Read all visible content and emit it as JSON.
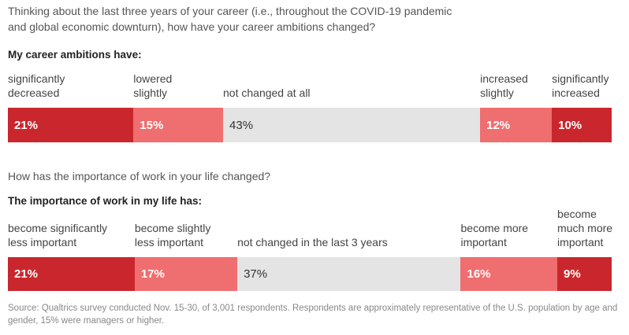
{
  "colors": {
    "dark_red": "#c9272d",
    "light_red": "#ef6e70",
    "neutral_gray": "#e4e4e4"
  },
  "chart_data": [
    {
      "type": "bar",
      "orientation": "horizontal-stacked-100",
      "question": "Thinking about the last three years of your career (i.e., throughout the COVID-19 pandemic and global economic downturn), how have your career ambitions changed?",
      "question_lines": [
        "Thinking about the last three years of your career (i.e., throughout the COVID-19 pandemic",
        "and global economic downturn), how have your career ambitions changed?"
      ],
      "subtitle": "My career ambitions have:",
      "segments": [
        {
          "label": "significantly decreased",
          "label_lines": [
            "significantly",
            "decreased"
          ],
          "value": 21,
          "value_label": "21%",
          "color": "#c9272d"
        },
        {
          "label": "lowered slightly",
          "label_lines": [
            "lowered",
            "slightly"
          ],
          "value": 15,
          "value_label": "15%",
          "color": "#ef6e70"
        },
        {
          "label": "not changed at all",
          "label_lines": [
            "not changed at all"
          ],
          "value": 43,
          "value_label": "43%",
          "color": "#e4e4e4"
        },
        {
          "label": "increased slightly",
          "label_lines": [
            "increased",
            "slightly"
          ],
          "value": 12,
          "value_label": "12%",
          "color": "#ef6e70"
        },
        {
          "label": "significantly increased",
          "label_lines": [
            "significantly",
            "increased"
          ],
          "value": 10,
          "value_label": "10%",
          "color": "#c9272d"
        }
      ]
    },
    {
      "type": "bar",
      "orientation": "horizontal-stacked-100",
      "question": "How has the importance of work in your life changed?",
      "question_lines": [
        "How has the importance of work in your life changed?"
      ],
      "subtitle": "The importance of work in my life has:",
      "segments": [
        {
          "label": "become significantly less important",
          "label_lines": [
            "become significantly",
            "less important"
          ],
          "value": 21,
          "value_label": "21%",
          "color": "#c9272d"
        },
        {
          "label": "become slightly less important",
          "label_lines": [
            "become slightly",
            "less important"
          ],
          "value": 17,
          "value_label": "17%",
          "color": "#ef6e70"
        },
        {
          "label": "not changed in the last 3 years",
          "label_lines": [
            "not changed in the last 3 years"
          ],
          "value": 37,
          "value_label": "37%",
          "color": "#e4e4e4"
        },
        {
          "label": "become more important",
          "label_lines": [
            "become more",
            "important"
          ],
          "value": 16,
          "value_label": "16%",
          "color": "#ef6e70"
        },
        {
          "label": "become much more important",
          "label_lines": [
            "become",
            "much more",
            "important"
          ],
          "value": 9,
          "value_label": "9%",
          "color": "#c9272d"
        }
      ]
    }
  ],
  "source": "Source: Qualtrics survey conducted Nov. 15-30, of 3,001 respondents. Respondents are approximately representative of the U.S. population by age and gender, 15% were managers or higher."
}
